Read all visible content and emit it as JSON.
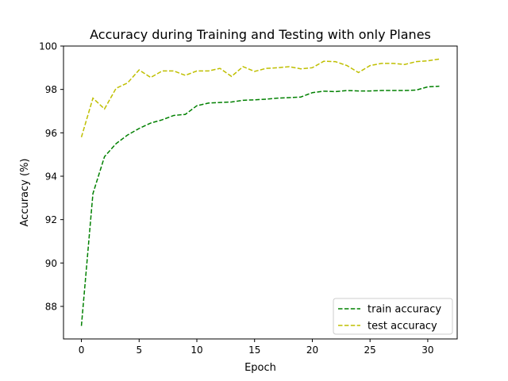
{
  "chart_data": {
    "type": "line",
    "title": "Accuracy during Training and Testing with only Planes",
    "xlabel": "Epoch",
    "ylabel": "Accuracy (%)",
    "xlim": [
      -1.55,
      32.55
    ],
    "ylim": [
      86.5,
      100
    ],
    "xticks": [
      0,
      5,
      10,
      15,
      20,
      25,
      30
    ],
    "yticks": [
      88,
      90,
      92,
      94,
      96,
      98,
      100
    ],
    "grid": false,
    "legend_position": "lower right",
    "x": [
      0,
      1,
      2,
      3,
      4,
      5,
      6,
      7,
      8,
      9,
      10,
      11,
      12,
      13,
      14,
      15,
      16,
      17,
      18,
      19,
      20,
      21,
      22,
      23,
      24,
      25,
      26,
      27,
      28,
      29,
      30,
      31
    ],
    "series": [
      {
        "name": "train accuracy",
        "color": "#008000",
        "linestyle": "dashed",
        "values": [
          87.1,
          93.2,
          94.9,
          95.5,
          95.9,
          96.2,
          96.45,
          96.6,
          96.8,
          96.85,
          97.25,
          97.37,
          97.4,
          97.42,
          97.5,
          97.52,
          97.55,
          97.6,
          97.62,
          97.65,
          97.85,
          97.92,
          97.9,
          97.95,
          97.93,
          97.93,
          97.95,
          97.95,
          97.95,
          97.97,
          98.12,
          98.15
        ]
      },
      {
        "name": "test accuracy",
        "color": "#bfbf00",
        "linestyle": "dashed",
        "values": [
          95.8,
          97.6,
          97.1,
          98.05,
          98.3,
          98.9,
          98.55,
          98.85,
          98.85,
          98.65,
          98.85,
          98.85,
          98.97,
          98.6,
          99.05,
          98.83,
          98.97,
          99.0,
          99.05,
          98.95,
          99.0,
          99.3,
          99.28,
          99.1,
          98.78,
          99.1,
          99.2,
          99.2,
          99.15,
          99.28,
          99.32,
          99.4
        ]
      }
    ]
  }
}
